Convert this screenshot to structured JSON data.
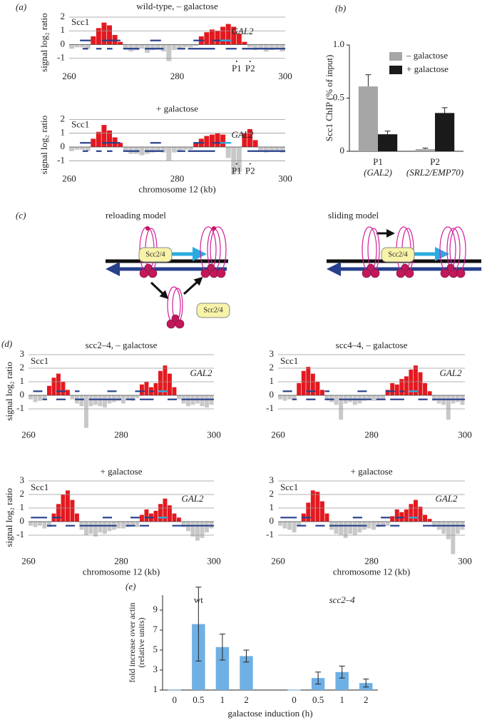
{
  "panel_labels": [
    "(a)",
    "(b)",
    "(c)",
    "(d)",
    "(e)"
  ],
  "diagram": {
    "left_title": "reloading model",
    "right_title": "sliding model",
    "loader_labels": [
      "Scc2/4",
      "Scc2/4",
      "Scc2/4"
    ]
  },
  "chart_data": [
    {
      "type": "histogram",
      "title": "wild-type, – galactose",
      "ylabel": "signal log₂ ratio",
      "series_label": "Scc1",
      "gene_label": "GAL2",
      "bins": [
        260,
        261,
        262,
        263,
        264,
        265,
        266,
        267,
        268,
        269,
        270,
        271,
        272,
        273,
        274,
        275,
        276,
        277,
        278,
        279,
        280,
        281,
        282,
        283,
        284,
        285,
        286,
        287,
        288,
        289,
        290,
        291,
        292,
        293,
        294,
        295,
        296,
        297,
        298,
        299,
        300
      ],
      "values": [
        -0.3,
        -0.2,
        -0.2,
        -0.3,
        0.6,
        1.2,
        1.6,
        1.4,
        0.7,
        0.2,
        -0.3,
        -0.5,
        -0.4,
        -0.3,
        -0.6,
        -0.4,
        -0.3,
        -0.5,
        -1.2,
        -0.4,
        -0.3,
        -0.2,
        -0.2,
        -0.1,
        0.6,
        0.9,
        1.1,
        1.0,
        1.3,
        1.5,
        1.3,
        0.8,
        0.2,
        -0.2,
        -0.4,
        -0.3,
        -0.5,
        -0.4,
        -0.3,
        -0.5
      ],
      "xlim": [
        260,
        300
      ],
      "xticks": [
        260,
        280,
        300
      ],
      "ylim": [
        -2,
        2.3
      ],
      "yticks": [
        2,
        1,
        0,
        -1
      ],
      "positive_color": "#e3191f",
      "negative_color": "#c8c8c8",
      "segment_color": "#27408b",
      "gene_color": "#29abe2",
      "upper_level": 0.3,
      "lower_level": -0.3,
      "upper_segments": [
        [
          262,
          264
        ],
        [
          266,
          269.5
        ],
        [
          275,
          277
        ],
        [
          283,
          285
        ],
        [
          286.5,
          288
        ]
      ],
      "lower_segments": [
        [
          262.5,
          263.5
        ],
        [
          265,
          266
        ],
        [
          267,
          268
        ],
        [
          270,
          273
        ],
        [
          274,
          277.5
        ],
        [
          280,
          281.5
        ],
        [
          282,
          287
        ],
        [
          289,
          291
        ],
        [
          292,
          300
        ]
      ],
      "gene_segment": [
        288,
        290
      ],
      "markers": [
        {
          "label": "P1",
          "x": 291
        },
        {
          "label": "P2",
          "x": 293.5
        }
      ]
    },
    {
      "type": "histogram",
      "title": "+ galactose",
      "ylabel": "signal log₂ ratio",
      "xlabel": "chromosome 12 (kb)",
      "series_label": "Scc1",
      "gene_label": "GAL2",
      "bins": [
        260,
        261,
        262,
        263,
        264,
        265,
        266,
        267,
        268,
        269,
        270,
        271,
        272,
        273,
        274,
        275,
        276,
        277,
        278,
        279,
        280,
        281,
        282,
        283,
        284,
        285,
        286,
        287,
        288,
        289,
        290,
        291,
        292,
        293,
        294,
        295,
        296,
        297,
        298,
        299,
        300
      ],
      "values": [
        -0.3,
        -0.2,
        -0.2,
        -0.3,
        0.6,
        1.1,
        1.6,
        1.2,
        0.7,
        0.3,
        -0.3,
        -0.5,
        -0.5,
        -0.6,
        -0.5,
        -0.4,
        -0.3,
        -0.4,
        -1.0,
        -0.4,
        -0.3,
        -0.2,
        -0.2,
        0.3,
        0.6,
        0.8,
        0.9,
        1.0,
        0.9,
        -0.8,
        -2.0,
        -1.8,
        1.0,
        1.3,
        0.5,
        -0.3,
        -0.4,
        -0.3,
        -0.3,
        -0.4
      ],
      "xlim": [
        260,
        300
      ],
      "xticks": [
        260,
        280,
        300
      ],
      "ylim": [
        -2,
        2.3
      ],
      "yticks": [
        2,
        1,
        0,
        -1
      ],
      "positive_color": "#e3191f",
      "negative_color": "#c8c8c8",
      "segment_color": "#27408b",
      "gene_color": "#29abe2",
      "upper_level": 0.3,
      "lower_level": -0.3,
      "upper_segments": [
        [
          262,
          264
        ],
        [
          266,
          269.5
        ],
        [
          275,
          277
        ],
        [
          283,
          285
        ],
        [
          286.5,
          288
        ]
      ],
      "lower_segments": [
        [
          262.5,
          263.5
        ],
        [
          265,
          266
        ],
        [
          267,
          268
        ],
        [
          270,
          273
        ],
        [
          274,
          277.5
        ],
        [
          280,
          281.5
        ],
        [
          282,
          287
        ],
        [
          293,
          300
        ]
      ],
      "gene_segment": [
        288,
        290
      ],
      "markers": [
        {
          "label": "P1",
          "x": 291
        },
        {
          "label": "P2",
          "x": 293.5
        }
      ]
    },
    {
      "type": "histogram",
      "title": "scc2–4, – galactose",
      "ylabel": "signal log₂ ratio",
      "series_label": "Scc1",
      "gene_label": "GAL2",
      "bins": [
        260,
        261,
        262,
        263,
        264,
        265,
        266,
        267,
        268,
        269,
        270,
        271,
        272,
        273,
        274,
        275,
        276,
        277,
        278,
        279,
        280,
        281,
        282,
        283,
        284,
        285,
        286,
        287,
        288,
        289,
        290,
        291,
        292,
        293,
        294,
        295,
        296,
        297,
        298,
        299,
        300
      ],
      "values": [
        -0.3,
        -0.5,
        -0.4,
        -0.3,
        0.7,
        1.3,
        1.6,
        1.0,
        0.4,
        -0.3,
        -0.6,
        -0.8,
        -2.4,
        -0.8,
        -0.7,
        -0.8,
        -0.9,
        -0.6,
        -0.5,
        -0.4,
        -0.6,
        -0.3,
        -0.4,
        -0.2,
        0.8,
        1.0,
        0.6,
        0.9,
        1.8,
        2.2,
        1.6,
        0.6,
        -0.3,
        -0.6,
        -0.8,
        -0.7,
        -0.6,
        -0.8,
        -0.9,
        -0.7
      ],
      "xlim": [
        260,
        300
      ],
      "xticks": [
        260,
        280,
        300
      ],
      "ylim": [
        -2.6,
        3.2
      ],
      "yticks": [
        3,
        2,
        1,
        0,
        -1
      ],
      "positive_color": "#e3191f",
      "negative_color": "#c8c8c8",
      "segment_color": "#27408b",
      "gene_color": "#29abe2",
      "upper_level": 0.3,
      "lower_level": -0.3,
      "upper_segments": [
        [
          261,
          263
        ],
        [
          266,
          268
        ],
        [
          270,
          271
        ],
        [
          277,
          279
        ],
        [
          283,
          285
        ],
        [
          286,
          287
        ]
      ],
      "lower_segments": [
        [
          263,
          264
        ],
        [
          266,
          268
        ],
        [
          270,
          272
        ],
        [
          273,
          280
        ],
        [
          281,
          283
        ],
        [
          284,
          287
        ],
        [
          290,
          292
        ],
        [
          293,
          300
        ]
      ],
      "gene_segment": [
        288,
        290
      ]
    },
    {
      "type": "histogram",
      "title": "scc4–4, – galactose",
      "series_label": "Scc1",
      "gene_label": "GAL2",
      "bins": [
        260,
        261,
        262,
        263,
        264,
        265,
        266,
        267,
        268,
        269,
        270,
        271,
        272,
        273,
        274,
        275,
        276,
        277,
        278,
        279,
        280,
        281,
        282,
        283,
        284,
        285,
        286,
        287,
        288,
        289,
        290,
        291,
        292,
        293,
        294,
        295,
        296,
        297,
        298,
        299,
        300
      ],
      "values": [
        -0.3,
        -0.4,
        -0.3,
        -0.3,
        0.9,
        1.8,
        2.1,
        1.6,
        1.0,
        0.4,
        -0.3,
        -0.5,
        -0.7,
        -1.8,
        -0.6,
        -0.5,
        -0.7,
        -0.6,
        -0.4,
        -0.3,
        -0.4,
        -0.3,
        -0.3,
        0.4,
        0.9,
        0.8,
        1.2,
        1.4,
        1.9,
        2.2,
        1.7,
        0.9,
        0.3,
        -0.4,
        -0.6,
        -0.7,
        -1.8,
        -0.6,
        -0.5,
        -0.7
      ],
      "xlim": [
        260,
        300
      ],
      "xticks": [
        260,
        280,
        300
      ],
      "ylim": [
        -2.6,
        3.2
      ],
      "yticks": [
        3,
        2,
        1,
        0,
        -1
      ],
      "positive_color": "#e3191f",
      "negative_color": "#c8c8c8",
      "segment_color": "#27408b",
      "gene_color": "#29abe2",
      "upper_level": 0.3,
      "lower_level": -0.3,
      "upper_segments": [
        [
          261,
          263
        ],
        [
          266,
          268
        ],
        [
          270,
          271
        ],
        [
          277,
          279
        ],
        [
          283,
          285
        ],
        [
          286,
          287
        ]
      ],
      "lower_segments": [
        [
          263,
          264
        ],
        [
          266,
          268
        ],
        [
          270,
          272
        ],
        [
          273,
          280
        ],
        [
          281,
          283
        ],
        [
          284,
          287
        ],
        [
          290,
          292
        ],
        [
          293,
          300
        ]
      ],
      "gene_segment": [
        288,
        290
      ]
    },
    {
      "type": "histogram",
      "title": "+ galactose",
      "ylabel": "signal log₂ ratio",
      "xlabel": "chromosome 12 (kb)",
      "series_label": "Scc1",
      "gene_label": "GAL2",
      "bins": [
        260,
        261,
        262,
        263,
        264,
        265,
        266,
        267,
        268,
        269,
        270,
        271,
        272,
        273,
        274,
        275,
        276,
        277,
        278,
        279,
        280,
        281,
        282,
        283,
        284,
        285,
        286,
        287,
        288,
        289,
        290,
        291,
        292,
        293,
        294,
        295,
        296,
        297,
        298,
        299,
        300
      ],
      "values": [
        -0.3,
        -0.4,
        -0.3,
        -0.5,
        -0.4,
        0.6,
        1.3,
        2.0,
        2.3,
        1.6,
        0.6,
        -0.6,
        -1.0,
        -0.9,
        -1.1,
        -0.8,
        -0.9,
        -0.7,
        -0.6,
        -0.5,
        -0.5,
        -0.4,
        -0.3,
        -0.4,
        0.5,
        0.9,
        0.6,
        0.8,
        1.3,
        1.7,
        1.2,
        0.6,
        0.3,
        -0.4,
        -0.7,
        -1.1,
        -1.4,
        -1.2,
        -0.8,
        -0.5
      ],
      "xlim": [
        260,
        300
      ],
      "xticks": [
        260,
        280,
        300
      ],
      "ylim": [
        -2.6,
        3.2
      ],
      "yticks": [
        3,
        2,
        1,
        0,
        -1
      ],
      "positive_color": "#e3191f",
      "negative_color": "#c8c8c8",
      "segment_color": "#27408b",
      "gene_color": "#29abe2",
      "upper_level": 0.3,
      "lower_level": -0.3,
      "upper_segments": [
        [
          260.5,
          264
        ],
        [
          265,
          267
        ],
        [
          276,
          278
        ],
        [
          282,
          284
        ],
        [
          285,
          287
        ]
      ],
      "lower_segments": [
        [
          264,
          266
        ],
        [
          268,
          270
        ],
        [
          271,
          279
        ],
        [
          281,
          283
        ],
        [
          284,
          286
        ],
        [
          291,
          300
        ]
      ],
      "gene_segment": [
        288,
        290
      ]
    },
    {
      "type": "histogram",
      "title": "+ galactose",
      "xlabel": "chromosome 12 (kb)",
      "series_label": "Scc1",
      "gene_label": "GAL2",
      "bins": [
        260,
        261,
        262,
        263,
        264,
        265,
        266,
        267,
        268,
        269,
        270,
        271,
        272,
        273,
        274,
        275,
        276,
        277,
        278,
        279,
        280,
        281,
        282,
        283,
        284,
        285,
        286,
        287,
        288,
        289,
        290,
        291,
        292,
        293,
        294,
        295,
        296,
        297,
        298,
        299,
        300
      ],
      "values": [
        -0.3,
        -0.5,
        -0.6,
        -0.8,
        -0.3,
        0.6,
        1.4,
        2.3,
        2.2,
        1.5,
        0.6,
        -0.6,
        -0.9,
        -1.0,
        -1.2,
        -0.9,
        -1.0,
        -0.8,
        -0.6,
        -0.5,
        -0.6,
        -0.4,
        -0.3,
        -0.3,
        0.4,
        0.9,
        0.7,
        0.9,
        1.3,
        1.6,
        1.1,
        0.5,
        0.2,
        -0.4,
        -0.6,
        -0.9,
        -1.3,
        -2.4,
        -0.9,
        -0.6
      ],
      "xlim": [
        260,
        300
      ],
      "xticks": [
        260,
        280,
        300
      ],
      "ylim": [
        -2.6,
        3.2
      ],
      "yticks": [
        3,
        2,
        1,
        0,
        -1
      ],
      "positive_color": "#e3191f",
      "negative_color": "#c8c8c8",
      "segment_color": "#27408b",
      "gene_color": "#29abe2",
      "upper_level": 0.3,
      "lower_level": -0.3,
      "upper_segments": [
        [
          260.5,
          264
        ],
        [
          265,
          267
        ],
        [
          276,
          278
        ],
        [
          282,
          284
        ],
        [
          285,
          287
        ]
      ],
      "lower_segments": [
        [
          264,
          266
        ],
        [
          268,
          270
        ],
        [
          271,
          279
        ],
        [
          281,
          283
        ],
        [
          284,
          286
        ],
        [
          291,
          300
        ]
      ],
      "gene_segment": [
        288,
        290
      ]
    },
    {
      "type": "bar",
      "ylabel": "Scc1 ChIP (% of input)",
      "categories": [
        "P1",
        "P2"
      ],
      "category_sublabels": [
        "(GAL2)",
        "(SRL2/EMP70)"
      ],
      "sublabel_colors": [
        "#29abe2",
        "#27408b"
      ],
      "series": [
        {
          "name": "– galactose",
          "color": "#a6a6a6",
          "values": [
            0.61,
            0.02
          ],
          "errors": [
            0.11,
            0.01
          ]
        },
        {
          "name": "+ galactose",
          "color": "#1a1a1a",
          "values": [
            0.16,
            0.36
          ],
          "errors": [
            0.03,
            0.05
          ]
        }
      ],
      "ylim": [
        0,
        1
      ],
      "yticks": [
        0,
        0.5,
        {
          "value": 1,
          "label": "1.0"
        }
      ]
    },
    {
      "type": "bar",
      "ylabel": [
        "fold increase over actin",
        "(relative units)"
      ],
      "xlabel": "galactose induction (h)",
      "group_labels": [
        "wt",
        "scc2–4"
      ],
      "categories": [
        "0",
        "0.5",
        "1",
        "2",
        null,
        "0",
        "0.5",
        "1",
        "2"
      ],
      "values": [
        1.05,
        7.6,
        5.3,
        4.4,
        null,
        1.03,
        2.2,
        2.8,
        1.7
      ],
      "errors": [
        null,
        3.7,
        1.3,
        0.6,
        null,
        null,
        0.6,
        0.6,
        0.4
      ],
      "color": "#6fb0e4",
      "ylim": [
        1,
        10.5
      ],
      "yticks": [
        1,
        3,
        5,
        7,
        9
      ]
    }
  ]
}
